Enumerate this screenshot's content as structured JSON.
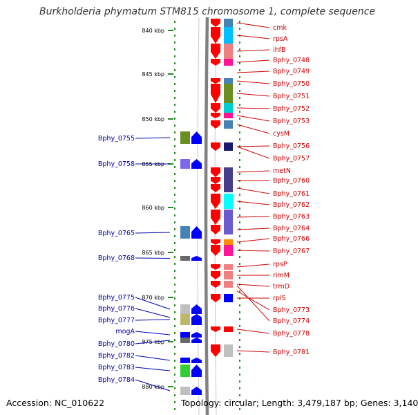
{
  "title": "Burkholderia phymatum STM815 chromosome 1, complete sequence",
  "footer": {
    "accession": "Accession: NC_010622",
    "topology": "Topology: circular; Length: 3,479,187 bp; Genes: 3,140"
  },
  "colors": {
    "forward_arrow": "#0000ff",
    "reverse_arrow": "#ff0000",
    "forward_label": "#0000aa",
    "reverse_label": "#cc0000",
    "backbone": "#808080",
    "tick": "#228b22"
  },
  "scale": {
    "ticks": [
      "840 kbp",
      "845 kbp",
      "850 kbp",
      "855 kbp",
      "860 kbp",
      "865 kbp",
      "870 kbp",
      "875 kbp",
      "880 kbp"
    ]
  },
  "forward_genes": [
    {
      "label": "Bphy_0755",
      "color": "#6b8e23"
    },
    {
      "label": "Bphy_0758",
      "color": "#7b68ee"
    },
    {
      "label": "Bphy_0765",
      "color": "#4682b4"
    },
    {
      "label": "Bphy_0768",
      "color": "#696969"
    },
    {
      "label": "Bphy_0775",
      "color": "#c0c0c0"
    },
    {
      "label": "Bphy_0776",
      "color": "#c0c0c0"
    },
    {
      "label": "Bphy_0777",
      "color": "#bdb76b"
    },
    {
      "label": "mogA",
      "color": "#0000ff"
    },
    {
      "label": "Bphy_0780",
      "color": "#696969"
    },
    {
      "label": "Bphy_0782",
      "color": "#0000ff"
    },
    {
      "label": "Bphy_0783",
      "color": "#32cd32"
    },
    {
      "label": "Bphy_0784",
      "color": "#c0c0c0"
    }
  ],
  "reverse_genes": [
    {
      "label": "cmk",
      "color": "#4682b4"
    },
    {
      "label": "rpsA",
      "color": "#00bfff"
    },
    {
      "label": "ihfB",
      "color": "#f08080"
    },
    {
      "label": "Bphy_0748",
      "color": "#ff1493"
    },
    {
      "label": "Bphy_0749",
      "color": "#00ced1"
    },
    {
      "label": "Bphy_0750",
      "color": "#4682b4"
    },
    {
      "label": "Bphy_0751",
      "color": "#6b8e23"
    },
    {
      "label": "Bphy_0752",
      "color": "#00ced1"
    },
    {
      "label": "Bphy_0753",
      "color": "#ff1493"
    },
    {
      "label": "cysM",
      "color": "#4682b4"
    },
    {
      "label": "Bphy_0756",
      "color": "#f08080"
    },
    {
      "label": "Bphy_0757",
      "color": "#191970"
    },
    {
      "label": "metN",
      "color": "#483d8b"
    },
    {
      "label": "Bphy_0760",
      "color": "#483d8b"
    },
    {
      "label": "Bphy_0761",
      "color": "#483d8b"
    },
    {
      "label": "Bphy_0762",
      "color": "#00ffff"
    },
    {
      "label": "Bphy_0763",
      "color": "#6a5acd"
    },
    {
      "label": "Bphy_0764",
      "color": "#6a5acd"
    },
    {
      "label": "Bphy_0766",
      "color": "#ff8c00"
    },
    {
      "label": "Bphy_0767",
      "color": "#ff1493"
    },
    {
      "label": "rpsP",
      "color": "#f08080"
    },
    {
      "label": "rimM",
      "color": "#f08080"
    },
    {
      "label": "trmD",
      "color": "#f08080"
    },
    {
      "label": "rplS",
      "color": "#0000ff"
    },
    {
      "label": "Bphy_0773",
      "color": "#f08080"
    },
    {
      "label": "Bphy_0774",
      "color": "#f08080"
    },
    {
      "label": "Bphy_0778",
      "color": "#ff0000"
    },
    {
      "label": "Bphy_0781",
      "color": "#c0c0c0"
    }
  ]
}
